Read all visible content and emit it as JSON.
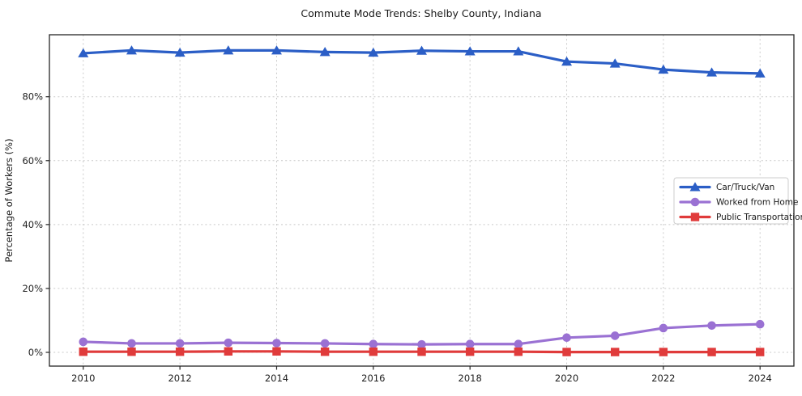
{
  "chart_data": {
    "type": "line",
    "title": "Commute Mode Trends: Shelby County, Indiana",
    "xlabel": "",
    "ylabel": "Percentage of Workers (%)",
    "x": [
      2010,
      2011,
      2012,
      2013,
      2014,
      2015,
      2016,
      2017,
      2018,
      2019,
      2020,
      2021,
      2022,
      2023,
      2024
    ],
    "series": [
      {
        "name": "Car/Truck/Van",
        "color": "#2b5ec6",
        "marker": "triangle",
        "values": [
          93.6,
          94.5,
          93.8,
          94.5,
          94.5,
          94.0,
          93.8,
          94.4,
          94.2,
          94.2,
          91.0,
          90.4,
          88.5,
          87.6,
          87.3
        ]
      },
      {
        "name": "Worked from Home",
        "color": "#9a71d3",
        "marker": "circle",
        "values": [
          3.3,
          2.8,
          2.8,
          3.0,
          2.9,
          2.8,
          2.6,
          2.5,
          2.6,
          2.6,
          4.6,
          5.2,
          7.6,
          8.4,
          8.8
        ]
      },
      {
        "name": "Public Transportation",
        "color": "#e03b3b",
        "marker": "square",
        "values": [
          0.2,
          0.2,
          0.2,
          0.3,
          0.3,
          0.2,
          0.2,
          0.2,
          0.2,
          0.2,
          0.1,
          0.1,
          0.1,
          0.1,
          0.1
        ]
      }
    ],
    "xticks": [
      2010,
      2012,
      2014,
      2016,
      2018,
      2020,
      2022,
      2024
    ],
    "yticks": {
      "values": [
        0,
        20,
        40,
        60,
        80
      ],
      "labels": [
        "0%",
        "20%",
        "40%",
        "60%",
        "80%"
      ]
    },
    "xlim": [
      2009.3,
      2024.7
    ],
    "ylim": [
      -4.3,
      99.4
    ],
    "grid": true,
    "legend_position": "center right"
  }
}
